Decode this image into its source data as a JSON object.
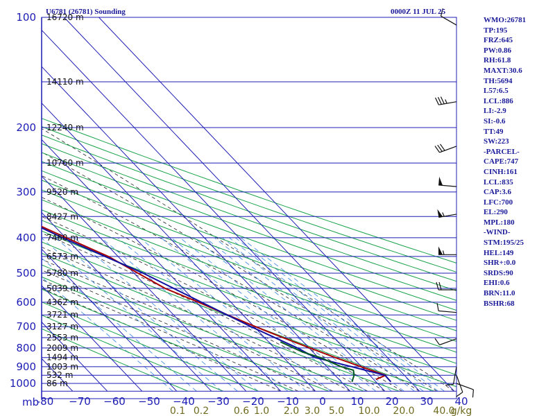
{
  "header": {
    "station": "U6781 (26781) Sounding",
    "datetime": "0000Z 11 JUL 25"
  },
  "chart_data": {
    "type": "line",
    "title": "U6781 (26781) Sounding",
    "pressure_label": "mb",
    "pressure_levels": [
      100,
      200,
      300,
      400,
      500,
      600,
      700,
      800,
      900,
      1000
    ],
    "pressure_tick_labels": [
      "100",
      "200",
      "300",
      "400",
      "500",
      "600",
      "700",
      "800",
      "900",
      "1000"
    ],
    "temperature_ticks": [
      -80,
      -70,
      -60,
      -50,
      -40,
      -30,
      -20,
      -10,
      0,
      10,
      20,
      30,
      40
    ],
    "temperature_tick_labels": [
      "-80",
      "−70",
      "−60",
      "−50",
      "−40",
      "−30",
      "−20",
      "−10",
      "0",
      "10",
      "20",
      "30",
      "40"
    ],
    "xlim": [
      -80,
      40
    ],
    "ylim": [
      100,
      1050
    ],
    "y_scale": "log",
    "height_labels": [
      {
        "p": 100,
        "text": "16720 m"
      },
      {
        "p": 150,
        "text": "14110 m"
      },
      {
        "p": 200,
        "text": "12240 m"
      },
      {
        "p": 250,
        "text": "10760 m"
      },
      {
        "p": 300,
        "text": "9520 m"
      },
      {
        "p": 350,
        "text": "8427 m"
      },
      {
        "p": 400,
        "text": "7460 m"
      },
      {
        "p": 450,
        "text": "6573 m"
      },
      {
        "p": 500,
        "text": "5780 m"
      },
      {
        "p": 550,
        "text": "5039 m"
      },
      {
        "p": 600,
        "text": "4362 m"
      },
      {
        "p": 650,
        "text": "3721 m"
      },
      {
        "p": 700,
        "text": "3127 m"
      },
      {
        "p": 750,
        "text": "2553 m"
      },
      {
        "p": 800,
        "text": "2009 m"
      },
      {
        "p": 850,
        "text": "1494 m"
      },
      {
        "p": 900,
        "text": "1003 m"
      },
      {
        "p": 950,
        "text": "532 m"
      },
      {
        "p": 1000,
        "text": "86 m"
      }
    ],
    "mixing_ratio_labels": [
      "0.1",
      "0.2",
      "0.6",
      "1.0",
      "2.0",
      "3.0",
      "5.0",
      "10.0",
      "20.0",
      "40.0",
      "g/kg"
    ],
    "series": [
      {
        "color": "#aa0000",
        "points": [
          [
            100,
            -69.2
          ],
          [
            150,
            -62.4
          ],
          [
            170,
            -60.5
          ],
          [
            200,
            -57.1
          ],
          [
            230,
            -53.2
          ],
          [
            250,
            -48.8
          ],
          [
            265,
            -45.2
          ],
          [
            300,
            -42.1
          ],
          [
            350,
            -37.4
          ],
          [
            400,
            -29.8
          ],
          [
            450,
            -22.8
          ],
          [
            500,
            -18.8
          ],
          [
            550,
            -15.2
          ],
          [
            600,
            -9.3
          ],
          [
            650,
            -4.5
          ],
          [
            700,
            0.4
          ],
          [
            750,
            5.3
          ],
          [
            800,
            10.2
          ],
          [
            850,
            14.9
          ],
          [
            900,
            19.8
          ],
          [
            950,
            24.6
          ],
          [
            975,
            20.7
          ]
        ]
      },
      {
        "color": "#1010a0",
        "points": [
          [
            150,
            -83.9
          ],
          [
            200,
            -72.6
          ],
          [
            250,
            -56.9
          ],
          [
            300,
            -46.2
          ],
          [
            400,
            -30.9
          ],
          [
            500,
            -17.3
          ],
          [
            600,
            -8.5
          ],
          [
            700,
            -0.9
          ],
          [
            800,
            6.6
          ],
          [
            850,
            9.1
          ],
          [
            900,
            17.1
          ],
          [
            950,
            24.4
          ],
          [
            990,
            24.3
          ]
        ]
      },
      {
        "color": "#005a1e",
        "points": [
          [
            770,
            3.4
          ],
          [
            820,
            6.9
          ],
          [
            850,
            10.6
          ],
          [
            900,
            14.1
          ],
          [
            920,
            16.7
          ],
          [
            950,
            15.5
          ],
          [
            990,
            13.1
          ]
        ]
      }
    ]
  },
  "wind_barbs": [
    {
      "p": 105,
      "dir": 300,
      "spd": 10
    },
    {
      "p": 170,
      "dir": 260,
      "spd": 35
    },
    {
      "p": 225,
      "dir": 250,
      "spd": 30
    },
    {
      "p": 290,
      "dir": 275,
      "spd": 50
    },
    {
      "p": 345,
      "dir": 260,
      "spd": 55
    },
    {
      "p": 445,
      "dir": 270,
      "spd": 55
    },
    {
      "p": 555,
      "dir": 270,
      "spd": 20
    },
    {
      "p": 640,
      "dir": 275,
      "spd": 10
    },
    {
      "p": 755,
      "dir": 250,
      "spd": 10
    },
    {
      "p": 900,
      "dir": 190,
      "spd": 10
    },
    {
      "p": 950,
      "dir": 160,
      "spd": 10
    },
    {
      "p": 1000,
      "dir": 110,
      "spd": 10
    }
  ],
  "stats": [
    "WMO:26781",
    "TP:195",
    "FRZ:645",
    "PW:0.86",
    "RH:61.8",
    "MAXT:30.6",
    "TH:5694",
    "L57:6.5",
    "LCL:886",
    "LI:-2.9",
    "SI:-0.6",
    "TT:49",
    "SW:223",
    "-PARCEL-",
    "CAPE:747",
    "CINH:161",
    "LCL:835",
    "CAP:3.6",
    "LFC:700",
    "EL:290",
    "MPL:180",
    "-WIND-",
    "STM:195/25",
    "HEL:149",
    "SHR+:0.0",
    "SRDS:90",
    "EHI:0.6",
    "BRN:11.0",
    "BSHR:68"
  ],
  "colors": {
    "isobar": "#1c1cb5",
    "isotherm": "#1c1cb5",
    "dry_adiabat": "#19a34a",
    "moist_adiabat": "#222222",
    "mixing_ratio": "#4a90e2",
    "temperature": "#aa0000",
    "dewpoint": "#005a1e",
    "parcel": "#1010a0"
  }
}
